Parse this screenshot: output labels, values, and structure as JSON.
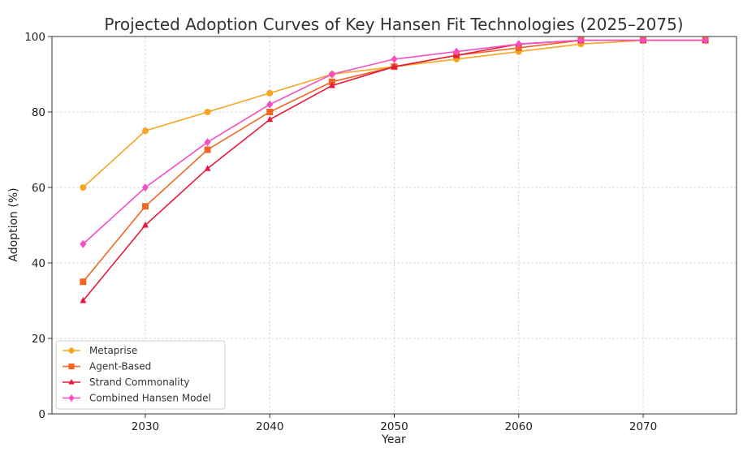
{
  "chart_data": {
    "type": "line",
    "title": "Projected Adoption Curves of Key Hansen Fit Technologies (2025–2075)",
    "xlabel": "Year",
    "ylabel": "Adoption (%)",
    "xlim": [
      2022.5,
      2077.5
    ],
    "ylim": [
      0,
      100
    ],
    "xticks": [
      2030,
      2040,
      2050,
      2060,
      2070
    ],
    "yticks": [
      0,
      20,
      40,
      60,
      80,
      100
    ],
    "grid": true,
    "legend_position": "lower-left",
    "x": [
      2025,
      2030,
      2035,
      2040,
      2045,
      2050,
      2055,
      2060,
      2065,
      2070,
      2075
    ],
    "series": [
      {
        "name": "Metaprise",
        "color": "#f5a623",
        "marker": "circle",
        "values": [
          60,
          75,
          80,
          85,
          90,
          92,
          94,
          96,
          98,
          99,
          99
        ]
      },
      {
        "name": "Agent-Based",
        "color": "#f26522",
        "marker": "square",
        "values": [
          35,
          55,
          70,
          80,
          88,
          92,
          95,
          97,
          99,
          99,
          99
        ]
      },
      {
        "name": "Strand Commonality",
        "color": "#e8173c",
        "marker": "triangle",
        "values": [
          30,
          50,
          65,
          78,
          87,
          92,
          95,
          98,
          99,
          99,
          99
        ]
      },
      {
        "name": "Combined Hansen Model",
        "color": "#f54ec4",
        "marker": "diamond",
        "values": [
          45,
          60,
          72,
          82,
          90,
          94,
          96,
          98,
          99,
          99,
          99
        ]
      }
    ]
  }
}
